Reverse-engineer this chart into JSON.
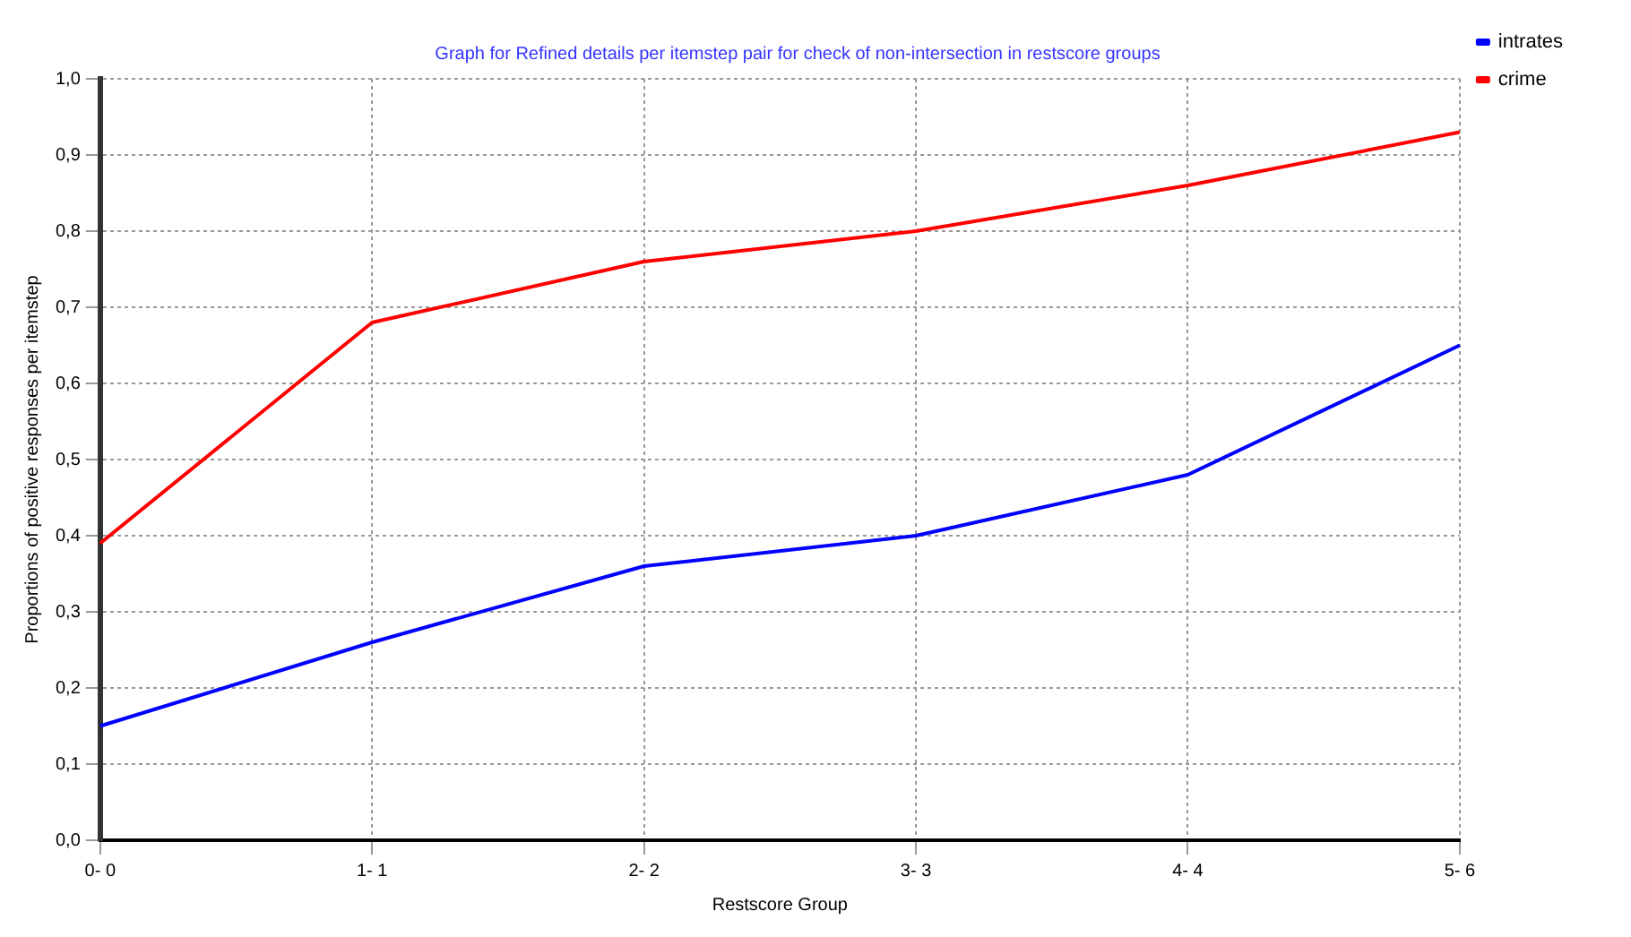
{
  "chart_data": {
    "type": "line",
    "title": "Graph for Refined details per itemstep pair for check of non-intersection in restscore groups",
    "xlabel": "Restscore Group",
    "ylabel": "Proportions of positive responses per itemstep",
    "categories": [
      "0- 0",
      "1- 1",
      "2- 2",
      "3- 3",
      "4- 4",
      "5- 6"
    ],
    "series": [
      {
        "name": "intrates",
        "color": "#0000ff",
        "values": [
          0.15,
          0.26,
          0.36,
          0.4,
          0.48,
          0.65
        ]
      },
      {
        "name": "crime",
        "color": "#ff0000",
        "values": [
          0.39,
          0.68,
          0.76,
          0.8,
          0.86,
          0.93
        ]
      }
    ],
    "ylim": [
      0,
      1
    ],
    "yticks": [
      {
        "value": 0,
        "label": "0,0"
      },
      {
        "value": 0.1,
        "label": "0,1"
      },
      {
        "value": 0.2,
        "label": "0,2"
      },
      {
        "value": 0.3,
        "label": "0,3"
      },
      {
        "value": 0.4,
        "label": "0,4"
      },
      {
        "value": 0.5,
        "label": "0,5"
      },
      {
        "value": 0.6,
        "label": "0,6"
      },
      {
        "value": 0.7,
        "label": "0,7"
      },
      {
        "value": 0.8,
        "label": "0,8"
      },
      {
        "value": 0.9,
        "label": "0,9"
      },
      {
        "value": 1,
        "label": "1,0"
      }
    ],
    "grid": true,
    "legend": "top right",
    "marker": "none",
    "line_style": "solid"
  }
}
